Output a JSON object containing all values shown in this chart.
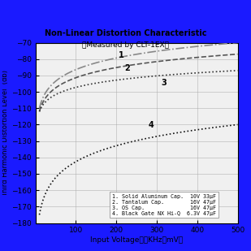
{
  "title_line1": "Non-Linear Distortion Characteristic",
  "title_line2": "（Measured by CLT-1EX）",
  "xlabel": "Input Voltage１０KHz（mV）",
  "ylabel": "Third Harmonic Distortion Level  (db)",
  "xlim": [
    0,
    500
  ],
  "ylim": [
    -180,
    -70
  ],
  "xticks": [
    100,
    200,
    300,
    400,
    500
  ],
  "yticks": [
    -180,
    -170,
    -160,
    -150,
    -140,
    -130,
    -120,
    -110,
    -100,
    -90,
    -80,
    -70
  ],
  "background_color": "#f0f0f0",
  "border_color": "#1a1aff",
  "grid_color": "#aaaaaa",
  "curve1_color": "#888888",
  "curve2_color": "#555555",
  "curve3_color": "#333333",
  "curve4_color": "#111111",
  "legend_items": [
    "1. Solid Aluminum Cap.  10V 33μF",
    "2. Tantalum Cap.        16V 47μF",
    "3. OS Cap.              16V 47μF",
    "4. Black Gate NX Hi-Q  6.3V 47μF"
  ]
}
